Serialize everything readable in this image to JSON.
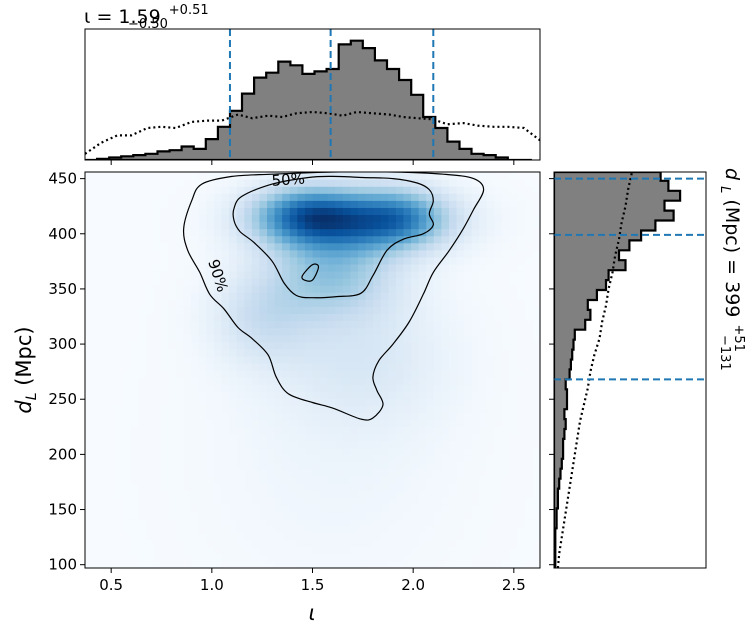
{
  "chart_data": {
    "type": "corner",
    "main": {
      "type": "heatmap",
      "xlabel": "ι",
      "ylabel": "d_L (Mpc)",
      "xlim": [
        0.37,
        2.63
      ],
      "ylim": [
        97,
        456
      ],
      "xticks": [
        "0.5",
        "1.0",
        "1.5",
        "2.0",
        "2.5"
      ],
      "yticks": [
        "100",
        "150",
        "200",
        "250",
        "300",
        "350",
        "400",
        "450"
      ],
      "colormap": "Blues",
      "density_blobs": [
        {
          "x": 1.72,
          "y": 413,
          "sx": 0.3,
          "sy": 20,
          "w": 1.0
        },
        {
          "x": 1.45,
          "y": 418,
          "sx": 0.18,
          "sy": 18,
          "w": 0.7
        },
        {
          "x": 1.95,
          "y": 415,
          "sx": 0.15,
          "sy": 18,
          "w": 0.45
        },
        {
          "x": 1.6,
          "y": 365,
          "sx": 0.22,
          "sy": 28,
          "w": 0.55
        },
        {
          "x": 1.25,
          "y": 325,
          "sx": 0.18,
          "sy": 30,
          "w": 0.3
        },
        {
          "x": 1.75,
          "y": 290,
          "sx": 0.3,
          "sy": 45,
          "w": 0.2
        },
        {
          "x": 1.6,
          "y": 200,
          "sx": 0.45,
          "sy": 90,
          "w": 0.07
        }
      ],
      "contours": [
        {
          "label": "50%",
          "points": [
            [
              1.15,
              434
            ],
            [
              1.3,
              445
            ],
            [
              1.48,
              451
            ],
            [
              1.6,
              452
            ],
            [
              1.75,
              451
            ],
            [
              1.9,
              450
            ],
            [
              2.02,
              446
            ],
            [
              2.08,
              440
            ],
            [
              2.1,
              430
            ],
            [
              2.08,
              418
            ],
            [
              2.1,
              408
            ],
            [
              2.05,
              400
            ],
            [
              1.95,
              395
            ],
            [
              1.87,
              385
            ],
            [
              1.8,
              362
            ],
            [
              1.74,
              346
            ],
            [
              1.62,
              343
            ],
            [
              1.5,
              342
            ],
            [
              1.42,
              344
            ],
            [
              1.36,
              355
            ],
            [
              1.3,
              375
            ],
            [
              1.21,
              392
            ],
            [
              1.14,
              402
            ],
            [
              1.11,
              412
            ],
            [
              1.11,
              423
            ],
            [
              1.15,
              434
            ]
          ]
        },
        {
          "label": "90%",
          "points": [
            [
              0.9,
              430
            ],
            [
              0.95,
              445
            ],
            [
              1.1,
              452
            ],
            [
              1.3,
              454
            ],
            [
              1.6,
              456
            ],
            [
              1.9,
              456
            ],
            [
              2.15,
              454
            ],
            [
              2.3,
              450
            ],
            [
              2.35,
              440
            ],
            [
              2.3,
              422
            ],
            [
              2.25,
              405
            ],
            [
              2.18,
              385
            ],
            [
              2.1,
              365
            ],
            [
              2.05,
              345
            ],
            [
              1.98,
              320
            ],
            [
              1.9,
              300
            ],
            [
              1.83,
              285
            ],
            [
              1.8,
              270
            ],
            [
              1.82,
              258
            ],
            [
              1.85,
              245
            ],
            [
              1.8,
              233
            ],
            [
              1.74,
              232
            ],
            [
              1.6,
              242
            ],
            [
              1.5,
              247
            ],
            [
              1.38,
              255
            ],
            [
              1.32,
              270
            ],
            [
              1.28,
              290
            ],
            [
              1.2,
              305
            ],
            [
              1.13,
              315
            ],
            [
              1.06,
              332
            ],
            [
              0.99,
              345
            ],
            [
              0.94,
              365
            ],
            [
              0.88,
              385
            ],
            [
              0.86,
              405
            ],
            [
              0.9,
              430
            ]
          ]
        },
        {
          "label": "",
          "points": [
            [
              1.45,
              362
            ],
            [
              1.5,
              372
            ],
            [
              1.53,
              370
            ],
            [
              1.5,
              358
            ],
            [
              1.46,
              358
            ],
            [
              1.45,
              362
            ]
          ]
        }
      ],
      "contour_labels": [
        {
          "text": "50%",
          "x": 1.38,
          "y": 449,
          "rotate": -4
        },
        {
          "text": "90%",
          "x": 1.03,
          "y": 362,
          "rotate": 72
        }
      ]
    },
    "top": {
      "type": "histogram",
      "title": "ι = 1.59 +0.51 −0.50",
      "title_main": "ι = 1.59",
      "title_sup": "+0.51",
      "title_sub": "−0.50",
      "bin_edges": [
        0.37,
        0.43,
        0.49,
        0.55,
        0.61,
        0.67,
        0.73,
        0.79,
        0.85,
        0.91,
        0.97,
        1.03,
        1.09,
        1.15,
        1.21,
        1.27,
        1.33,
        1.39,
        1.45,
        1.51,
        1.57,
        1.63,
        1.69,
        1.75,
        1.81,
        1.87,
        1.93,
        1.99,
        2.05,
        2.11,
        2.17,
        2.23,
        2.29,
        2.35,
        2.41,
        2.47,
        2.53,
        2.59
      ],
      "counts": [
        0.0,
        0.01,
        0.02,
        0.03,
        0.04,
        0.05,
        0.07,
        0.08,
        0.11,
        0.09,
        0.17,
        0.27,
        0.4,
        0.54,
        0.67,
        0.71,
        0.8,
        0.77,
        0.7,
        0.72,
        0.74,
        0.94,
        0.97,
        0.91,
        0.81,
        0.74,
        0.65,
        0.53,
        0.35,
        0.26,
        0.15,
        0.09,
        0.05,
        0.04,
        0.02,
        0.0,
        0.0
      ],
      "prior_x": [
        0.37,
        0.45,
        0.53,
        0.6,
        0.68,
        0.75,
        0.82,
        0.9,
        0.98,
        1.05,
        1.13,
        1.2,
        1.28,
        1.35,
        1.42,
        1.5,
        1.58,
        1.65,
        1.72,
        1.8,
        1.88,
        1.95,
        2.02,
        2.1,
        2.17,
        2.25,
        2.32,
        2.4,
        2.47,
        2.55,
        2.63
      ],
      "prior_y": [
        0.05,
        0.14,
        0.2,
        0.2,
        0.26,
        0.27,
        0.26,
        0.31,
        0.32,
        0.32,
        0.37,
        0.34,
        0.36,
        0.35,
        0.38,
        0.39,
        0.38,
        0.36,
        0.39,
        0.38,
        0.37,
        0.35,
        0.34,
        0.33,
        0.29,
        0.3,
        0.28,
        0.27,
        0.27,
        0.26,
        0.16
      ],
      "quantile_lines": [
        1.09,
        1.59,
        2.1
      ],
      "ylim": [
        0,
        1.0
      ]
    },
    "right": {
      "type": "histogram",
      "orientation": "horizontal",
      "label": "d_L (Mpc) = 399 +51 −131",
      "label_main": "d",
      "label_sub_main": "L",
      "label_rest": " (Mpc) = 399",
      "label_sup": "+51",
      "label_sub": "−131",
      "bin_edges": [
        97,
        106,
        115,
        124,
        133,
        142,
        151,
        160,
        169,
        178,
        187,
        196,
        205,
        214,
        223,
        232,
        241,
        250,
        259,
        268,
        277,
        286,
        295,
        304,
        313,
        322,
        331,
        340,
        349,
        358,
        367,
        376,
        385,
        394,
        403,
        412,
        421,
        430,
        439,
        448,
        456
      ],
      "counts": [
        0.01,
        0.01,
        0.01,
        0.01,
        0.02,
        0.02,
        0.03,
        0.03,
        0.04,
        0.05,
        0.06,
        0.07,
        0.07,
        0.08,
        0.09,
        0.08,
        0.1,
        0.1,
        0.09,
        0.12,
        0.13,
        0.14,
        0.15,
        0.16,
        0.24,
        0.28,
        0.26,
        0.33,
        0.4,
        0.42,
        0.55,
        0.5,
        0.58,
        0.67,
        0.78,
        0.92,
        0.85,
        0.97,
        0.88,
        0.82
      ],
      "prior_y": [
        97,
        110,
        125,
        140,
        155,
        170,
        185,
        200,
        215,
        230,
        245,
        260,
        275,
        290,
        305,
        320,
        335,
        350,
        365,
        380,
        395,
        410,
        425,
        440,
        456
      ],
      "prior_x": [
        0.03,
        0.04,
        0.06,
        0.08,
        0.1,
        0.12,
        0.14,
        0.16,
        0.18,
        0.2,
        0.23,
        0.26,
        0.28,
        0.31,
        0.35,
        0.37,
        0.4,
        0.42,
        0.45,
        0.47,
        0.5,
        0.52,
        0.55,
        0.57,
        0.6
      ],
      "quantile_lines": [
        268,
        399,
        450
      ],
      "xlim": [
        0,
        1.0
      ]
    }
  }
}
